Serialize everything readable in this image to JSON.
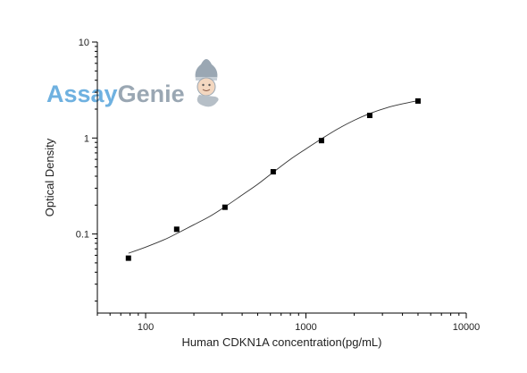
{
  "logo": {
    "part1": "Assay",
    "part2": "Genie",
    "color1": "#6fb1e0",
    "color2": "#9aa7b3"
  },
  "chart_data": {
    "type": "scatter",
    "title": "",
    "xlabel": "Human CDKN1A concentration(pg/mL)",
    "ylabel": "Optical Density",
    "x_scale": "log",
    "y_scale": "log",
    "xlim": [
      50,
      10000
    ],
    "ylim": [
      0.015,
      10
    ],
    "x_ticks": [
      {
        "value": 100,
        "label": "100"
      },
      {
        "value": 1000,
        "label": "1000"
      },
      {
        "value": 10000,
        "label": "10000"
      }
    ],
    "y_ticks": [
      {
        "value": 0.1,
        "label": "0.1"
      },
      {
        "value": 1,
        "label": "1"
      },
      {
        "value": 10,
        "label": "10"
      }
    ],
    "grid": false,
    "legend": "none",
    "series": [
      {
        "marker": "square",
        "color": "#000000",
        "x": [
          78.125,
          156.25,
          312.5,
          625,
          1250,
          2500,
          5000
        ],
        "y": [
          0.056,
          0.112,
          0.19,
          0.445,
          0.94,
          1.72,
          2.43
        ]
      }
    ],
    "fit_curve": {
      "color": "#333333",
      "x": [
        78.125,
        100,
        130,
        156.25,
        200,
        250,
        312.5,
        400,
        500,
        625,
        800,
        1000,
        1250,
        1600,
        2000,
        2500,
        3200,
        4000,
        5000
      ],
      "y": [
        0.063,
        0.073,
        0.087,
        0.101,
        0.125,
        0.152,
        0.192,
        0.255,
        0.33,
        0.44,
        0.6,
        0.77,
        0.98,
        1.26,
        1.53,
        1.8,
        2.07,
        2.27,
        2.45
      ]
    }
  }
}
